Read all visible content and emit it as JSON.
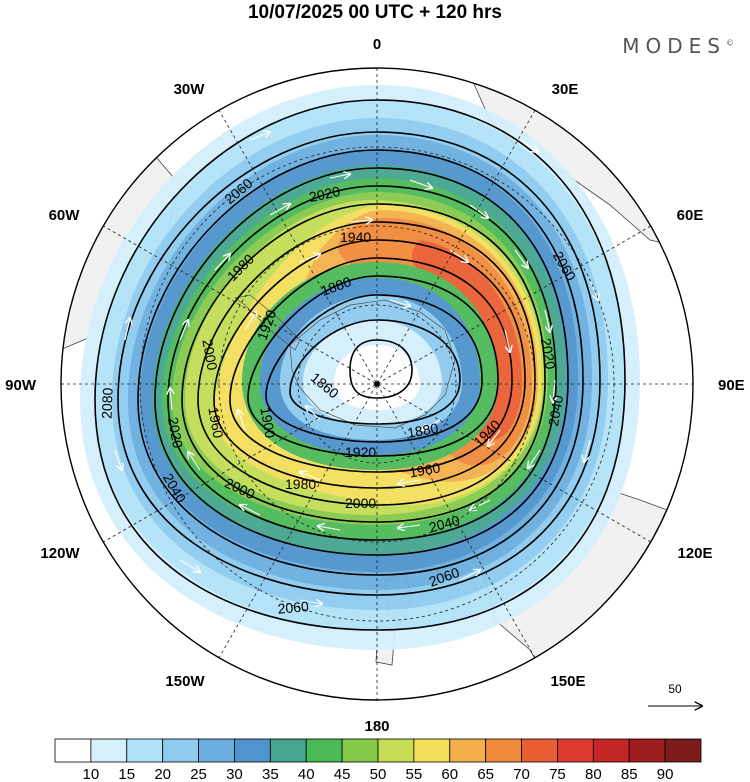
{
  "title": "10/07/2025  00 UTC  + 120 hrs",
  "brand": "MODES",
  "brand_mark": "©",
  "longitudes": [
    {
      "label": "0",
      "deg": 0
    },
    {
      "label": "30E",
      "deg": 30
    },
    {
      "label": "60E",
      "deg": 60
    },
    {
      "label": "90E",
      "deg": 90
    },
    {
      "label": "120E",
      "deg": 120
    },
    {
      "label": "150E",
      "deg": 150
    },
    {
      "label": "180",
      "deg": 180
    },
    {
      "label": "150W",
      "deg": 210
    },
    {
      "label": "120W",
      "deg": 240
    },
    {
      "label": "90W",
      "deg": 270
    },
    {
      "label": "60W",
      "deg": 300
    },
    {
      "label": "30W",
      "deg": 330
    }
  ],
  "contour_labels": [
    "2060",
    "2020",
    "1940",
    "1980",
    "2060",
    "1880",
    "2000",
    "1920",
    "2020",
    "2080",
    "1860",
    "2020",
    "2040",
    "1900",
    "1960",
    "2000",
    "1980",
    "1920",
    "1880",
    "1940",
    "1960",
    "2000",
    "2040",
    "2040",
    "2060",
    "2060"
  ],
  "wind_reference": {
    "value": "50"
  },
  "colorbar": {
    "ticks": [
      "10",
      "15",
      "20",
      "25",
      "30",
      "35",
      "40",
      "45",
      "50",
      "55",
      "60",
      "65",
      "70",
      "75",
      "80",
      "85",
      "90"
    ],
    "colors": [
      "#ffffff",
      "#d4f0fb",
      "#b2e2f7",
      "#8ecbef",
      "#6aaee0",
      "#4f94cd",
      "#45a58f",
      "#4cb957",
      "#86c94b",
      "#c4dd55",
      "#f3df5b",
      "#f5b04b",
      "#f18a3a",
      "#ea5e33",
      "#dc3a2d",
      "#c42626",
      "#a01d1f",
      "#7e1b1b"
    ]
  }
}
